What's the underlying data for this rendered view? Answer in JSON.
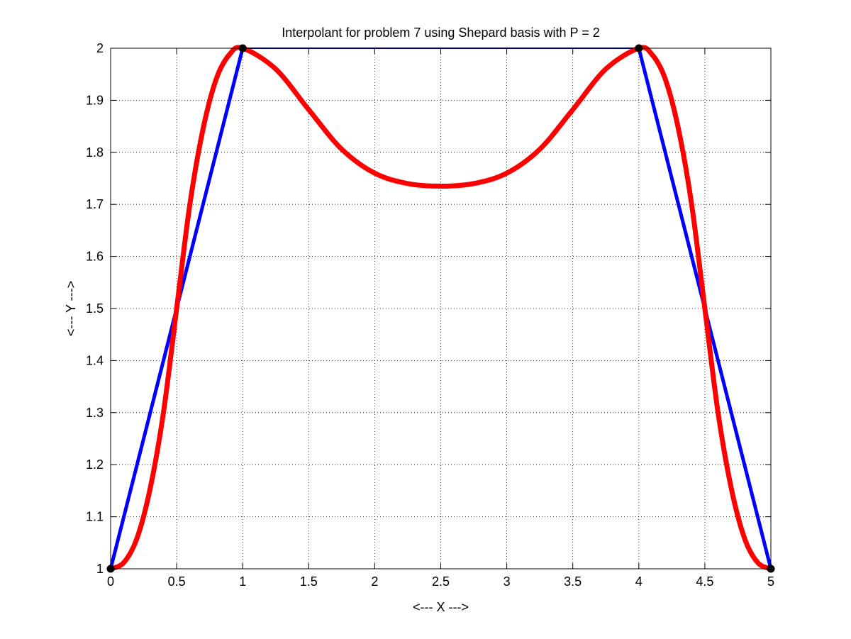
{
  "chart_data": {
    "type": "line",
    "title": "Interpolant for problem 7 using Shepard basis with P = 2",
    "xlabel": "<--- X --->",
    "ylabel": "<--- Y --->",
    "xlim": [
      0,
      5
    ],
    "ylim": [
      1,
      2
    ],
    "xticks": [
      0,
      0.5,
      1,
      1.5,
      2,
      2.5,
      3,
      3.5,
      4,
      4.5,
      5
    ],
    "yticks": [
      1,
      1.1,
      1.2,
      1.3,
      1.4,
      1.5,
      1.6,
      1.7,
      1.8,
      1.9,
      2
    ],
    "xtick_labels": [
      "0",
      "0.5",
      "1",
      "1.5",
      "2",
      "2.5",
      "3",
      "3.5",
      "4",
      "4.5",
      "5"
    ],
    "ytick_labels": [
      "1",
      "1.1",
      "1.2",
      "1.3",
      "1.4",
      "1.5",
      "1.6",
      "1.7",
      "1.8",
      "1.9",
      "2"
    ],
    "grid": true,
    "grid_style": "dotted",
    "series": [
      {
        "color": "#0000ff",
        "style": "line",
        "x": [
          0,
          1,
          4,
          5
        ],
        "y": [
          1,
          2,
          2,
          1
        ]
      },
      {
        "color": "#ff0000",
        "style": "line",
        "x": [
          0,
          0.1,
          0.2,
          0.3,
          0.4,
          0.5,
          0.6,
          0.7,
          0.8,
          0.9,
          1,
          1.25,
          1.5,
          1.75,
          2,
          2.25,
          2.5,
          2.75,
          3,
          3.25,
          3.5,
          3.75,
          4,
          4.1,
          4.2,
          4.3,
          4.4,
          4.5,
          4.6,
          4.7,
          4.8,
          4.9,
          5
        ],
        "y": [
          1,
          1.012,
          1.059,
          1.155,
          1.3,
          1.5,
          1.7,
          1.845,
          1.941,
          1.988,
          2,
          1.96,
          1.882,
          1.806,
          1.76,
          1.74,
          1.735,
          1.74,
          1.76,
          1.806,
          1.882,
          1.96,
          2,
          1.988,
          1.941,
          1.845,
          1.7,
          1.5,
          1.3,
          1.155,
          1.059,
          1.012,
          1
        ]
      },
      {
        "color": "#000000",
        "style": "markers",
        "x": [
          0,
          1,
          4,
          5
        ],
        "y": [
          1,
          2,
          2,
          1
        ]
      }
    ]
  }
}
